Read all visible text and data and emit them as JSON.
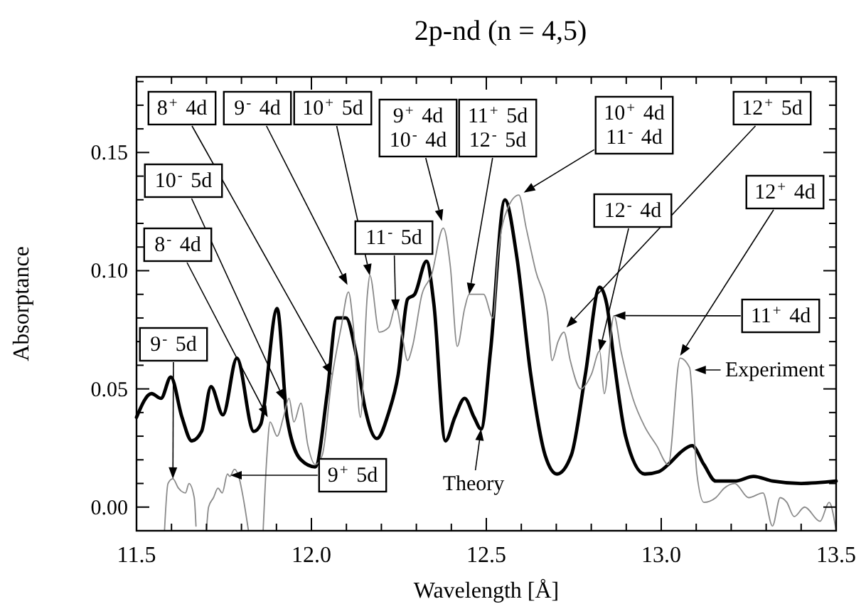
{
  "chart_data": {
    "type": "line",
    "title": "2p-nd (n = 4,5)",
    "xlabel": "Wavelength [Å]",
    "ylabel": "Absorptance",
    "xlim": [
      11.5,
      13.5
    ],
    "ylim": [
      -0.01,
      0.182
    ],
    "xticks": [
      11.5,
      {
        "value": 11.6,
        "label": null
      },
      {
        "value": 11.7,
        "label": null
      },
      {
        "value": 11.8,
        "label": null
      },
      {
        "value": 11.9,
        "label": null
      },
      {
        "value": 12,
        "label": "12.0"
      },
      {
        "value": 12.1,
        "label": null
      },
      {
        "value": 12.2,
        "label": null
      },
      {
        "value": 12.3,
        "label": null
      },
      {
        "value": 12.4,
        "label": null
      },
      12.5,
      {
        "value": 12.6,
        "label": null
      },
      {
        "value": 12.7,
        "label": null
      },
      {
        "value": 12.8,
        "label": null
      },
      {
        "value": 12.9,
        "label": null
      },
      {
        "value": 13,
        "label": "13.0"
      },
      {
        "value": 13.1,
        "label": null
      },
      {
        "value": 13.2,
        "label": null
      },
      {
        "value": 13.3,
        "label": null
      },
      {
        "value": 13.4,
        "label": null
      },
      13.5
    ],
    "yticks": [
      {
        "value": -0.01,
        "label": null
      },
      {
        "value": 0,
        "label": "0.00"
      },
      {
        "value": 0.01,
        "label": null
      },
      {
        "value": 0.02,
        "label": null
      },
      {
        "value": 0.03,
        "label": null
      },
      {
        "value": 0.04,
        "label": null
      },
      0.05,
      {
        "value": 0.06,
        "label": null
      },
      {
        "value": 0.07,
        "label": null
      },
      {
        "value": 0.08,
        "label": null
      },
      {
        "value": 0.09,
        "label": null
      },
      {
        "value": 0.1,
        "label": "0.10"
      },
      {
        "value": 0.11,
        "label": null
      },
      {
        "value": 0.12,
        "label": null
      },
      {
        "value": 0.13,
        "label": null
      },
      {
        "value": 0.14,
        "label": null
      },
      0.15,
      {
        "value": 0.16,
        "label": null
      },
      {
        "value": 0.17,
        "label": null
      },
      {
        "value": 0.18,
        "label": null
      }
    ],
    "grid": false,
    "series": [
      {
        "color": "#000000",
        "x": [
          11.5,
          11.543,
          11.57,
          11.598,
          11.63,
          11.658,
          11.686,
          11.713,
          11.747,
          11.787,
          11.835,
          11.855,
          11.902,
          11.93,
          11.97,
          12.011,
          12.045,
          12.072,
          12.099,
          12.126,
          12.153,
          12.187,
          12.221,
          12.248,
          12.275,
          12.295,
          12.329,
          12.35,
          12.383,
          12.41,
          12.438,
          12.465,
          12.485,
          12.512,
          12.553,
          12.587,
          12.627,
          12.668,
          12.702,
          12.743,
          12.783,
          12.824,
          12.844,
          12.865,
          12.898,
          12.953,
          12.993,
          13.027,
          13.054,
          13.088,
          13.122,
          13.156,
          13.21,
          13.264,
          13.318,
          13.4,
          13.5
        ],
        "values": [
          0.038,
          0.048,
          0.046,
          0.055,
          0.038,
          0.028,
          0.032,
          0.051,
          0.039,
          0.063,
          0.032,
          0.035,
          0.084,
          0.038,
          0.02,
          0.017,
          0.048,
          0.08,
          0.08,
          0.066,
          0.042,
          0.029,
          0.04,
          0.056,
          0.088,
          0.09,
          0.104,
          0.086,
          0.028,
          0.038,
          0.046,
          0.038,
          0.033,
          0.066,
          0.13,
          0.106,
          0.056,
          0.022,
          0.014,
          0.022,
          0.056,
          0.093,
          0.086,
          0.062,
          0.03,
          0.014,
          0.015,
          0.019,
          0.023,
          0.026,
          0.018,
          0.011,
          0.011,
          0.013,
          0.011,
          0.01,
          0.011
        ]
      },
      {
        "color": "#8a8a8a",
        "x": [
          11.58,
          11.59,
          11.604,
          11.62,
          11.64,
          11.65,
          11.665,
          11.67,
          11.69,
          11.7,
          11.706,
          11.72,
          11.733,
          11.745,
          11.76,
          11.767,
          11.78,
          11.794,
          11.805,
          11.82,
          11.84,
          11.862,
          11.872,
          11.882,
          11.902,
          11.92,
          11.936,
          11.95,
          11.97,
          11.99,
          12.011,
          12.031,
          12.058,
          12.085,
          12.106,
          12.119,
          12.14,
          12.16,
          12.167,
          12.194,
          12.221,
          12.241,
          12.26,
          12.275,
          12.289,
          12.316,
          12.343,
          12.377,
          12.397,
          12.417,
          12.438,
          12.451,
          12.465,
          12.492,
          12.519,
          12.533,
          12.56,
          12.593,
          12.614,
          12.641,
          12.675,
          12.688,
          12.705,
          12.722,
          12.74,
          12.77,
          12.8,
          12.824,
          12.837,
          12.865,
          12.885,
          12.919,
          12.953,
          12.987,
          13.02,
          13.054,
          13.081,
          13.102,
          13.122,
          13.156,
          13.18,
          13.21,
          13.25,
          13.291,
          13.318,
          13.34,
          13.359,
          13.38,
          13.41,
          13.454,
          13.48,
          13.5
        ],
        "values": [
          -0.01,
          0.01,
          0.012,
          0.008,
          0.006,
          0.01,
          0.004,
          -0.008,
          null,
          -0.01,
          0.0,
          0.004,
          0.008,
          0.006,
          0.014,
          0.013,
          0.016,
          0.012,
          0.004,
          -0.01,
          null,
          -0.01,
          0.02,
          0.036,
          0.03,
          0.038,
          0.046,
          0.036,
          0.044,
          0.026,
          0.018,
          0.022,
          0.054,
          0.076,
          0.091,
          0.078,
          0.038,
          0.09,
          0.098,
          0.074,
          0.076,
          0.085,
          0.072,
          0.062,
          0.068,
          0.09,
          0.098,
          0.118,
          0.102,
          0.068,
          0.084,
          0.09,
          0.09,
          0.09,
          0.08,
          0.106,
          0.126,
          0.132,
          0.118,
          0.1,
          0.082,
          0.062,
          0.07,
          0.074,
          0.062,
          0.05,
          0.056,
          0.066,
          0.048,
          0.081,
          0.066,
          0.046,
          0.034,
          0.026,
          0.018,
          0.063,
          0.059,
          0.014,
          0.002,
          0.004,
          0.008,
          0.01,
          0.004,
          0.006,
          -0.008,
          0.004,
          0.002,
          -0.004,
          0.0,
          -0.006,
          0.002,
          -0.01
        ]
      }
    ],
    "annotations": [
      {
        "text": "8$^{+}$ 4d",
        "x": 12.058,
        "y": 0.056
      },
      {
        "text": "9$^{-}$ 4d",
        "x": 12.103,
        "y": 0.094
      },
      {
        "text": "10$^{+}$ 5d",
        "x": 12.167,
        "y": 0.098
      },
      {
        "text": "9$^{+}$ 4d\n10$^{-}$ 4d",
        "x": 12.373,
        "y": 0.121
      },
      {
        "text": "11$^{+}$ 5d\n12$^{-}$ 5d",
        "x": 12.451,
        "y": 0.09
      },
      {
        "text": "10$^{+}$ 4d\n11$^{-}$ 4d",
        "x": 12.607,
        "y": 0.133
      },
      {
        "text": "12$^{+}$ 5d",
        "x": 12.729,
        "y": 0.076
      },
      {
        "text": "12$^{+}$ 4d",
        "x": 13.054,
        "y": 0.064
      },
      {
        "text": "11$^{+}$ 4d",
        "x": 12.865,
        "y": 0.081
      },
      {
        "text": "12$^{-}$ 4d",
        "x": 12.824,
        "y": 0.066
      },
      {
        "text": "11$^{-}$ 5d",
        "x": 12.241,
        "y": 0.083
      },
      {
        "text": "10$^{-}$ 5d",
        "x": 11.923,
        "y": 0.045
      },
      {
        "text": "8$^{-}$ 4d",
        "x": 11.875,
        "y": 0.038
      },
      {
        "text": "9$^{-}$ 5d",
        "x": 11.604,
        "y": 0.012
      },
      "9$^{+}$ 5d",
      {
        "text": "Theory",
        "x": 12.485,
        "y": 0.033
      },
      {
        "text": "Experiment",
        "x": 13.095,
        "y": 0.058
      }
    ]
  }
}
